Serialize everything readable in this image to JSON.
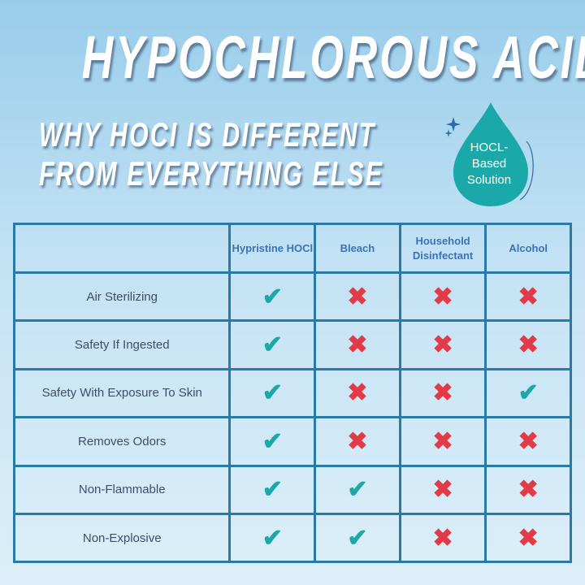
{
  "title": "HYPOCHLOROUS ACID",
  "subtitle_line1": "WHY HOCI IS DIFFERENT",
  "subtitle_line2": "FROM EVERYTHING ELSE",
  "badge": {
    "line1": "HOCL-",
    "line2": "Based",
    "line3": "Solution",
    "color": "#1aa8a8",
    "icon": "sparkle-icon"
  },
  "colors": {
    "check": "#1aa8a8",
    "cross": "#e23a46",
    "border": "#2a7aa8"
  },
  "table": {
    "headers": [
      "",
      "Hypristine HOCl",
      "Bleach",
      "Household Disinfectant",
      "Alcohol"
    ],
    "rows": [
      {
        "feature": "Air Sterilizing",
        "values": [
          true,
          false,
          false,
          false
        ]
      },
      {
        "feature": "Safety If Ingested",
        "values": [
          true,
          false,
          false,
          false
        ]
      },
      {
        "feature": "Safety With Exposure To Skin",
        "values": [
          true,
          false,
          false,
          true
        ]
      },
      {
        "feature": "Removes Odors",
        "values": [
          true,
          false,
          false,
          false
        ]
      },
      {
        "feature": "Non-Flammable",
        "values": [
          true,
          true,
          false,
          false
        ]
      },
      {
        "feature": "Non-Explosive",
        "values": [
          true,
          true,
          false,
          false
        ]
      }
    ]
  }
}
